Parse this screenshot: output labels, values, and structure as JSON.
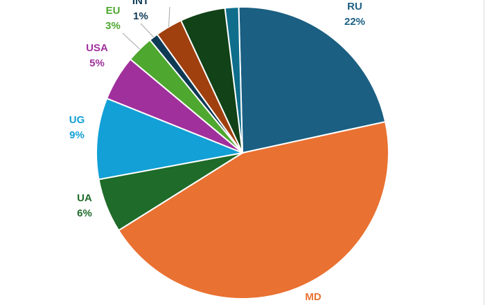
{
  "chart_data": {
    "type": "pie",
    "title": "",
    "start_angle_deg": -1.5,
    "slices": [
      {
        "name": "RU",
        "value": 22,
        "value_label": "22%",
        "color": "#1b5f82",
        "show_label": true
      },
      {
        "name": "MD",
        "value": 44.5,
        "value_label": "",
        "color": "#e97132",
        "show_label": true
      },
      {
        "name": "UA",
        "value": 6,
        "value_label": "6%",
        "color": "#1f6b2a",
        "show_label": true
      },
      {
        "name": "UG",
        "value": 9,
        "value_label": "9%",
        "color": "#12a0d6",
        "show_label": true
      },
      {
        "name": "USA",
        "value": 5,
        "value_label": "5%",
        "color": "#a0309c",
        "show_label": true
      },
      {
        "name": "EU",
        "value": 3,
        "value_label": "3%",
        "color": "#4ea72e",
        "show_label": true
      },
      {
        "name": "INT",
        "value": 1,
        "value_label": "1%",
        "color": "#0f3a55",
        "show_label": true
      },
      {
        "name": "",
        "value": 3,
        "value_label": "3%",
        "color": "#a0400f",
        "show_label": true
      },
      {
        "name": "",
        "value": 5,
        "value_label": "",
        "color": "#124218",
        "show_label": false
      },
      {
        "name": "",
        "value": 1.5,
        "value_label": "",
        "color": "#0e6e8c",
        "show_label": false
      }
    ]
  }
}
